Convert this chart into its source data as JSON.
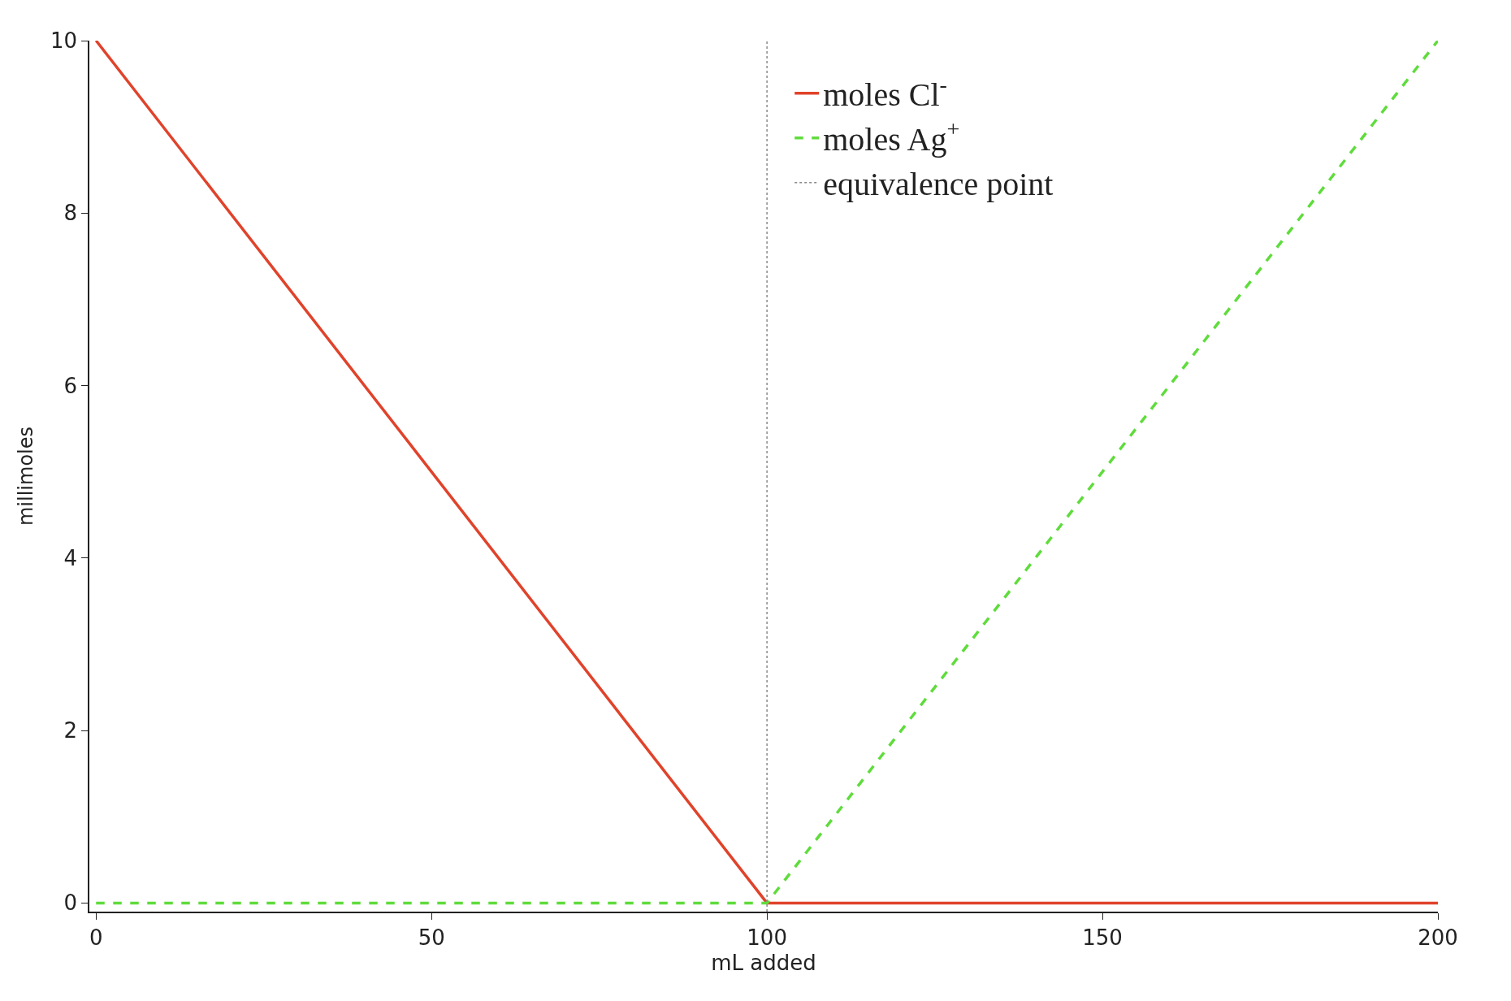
{
  "chart_data": {
    "type": "line",
    "xlabel": "mL added",
    "ylabel": "millimoles",
    "x": [
      0,
      100,
      200
    ],
    "series": [
      {
        "name": "moles Cl$^{-}$",
        "color": "#e0432b",
        "values": [
          10,
          0,
          0
        ],
        "line_style": "solid"
      },
      {
        "name": "moles Ag$^{+}$",
        "color": "#5fdc3c",
        "values": [
          0,
          0,
          10
        ],
        "line_style": "dashed"
      }
    ],
    "ref_lines": [
      {
        "axis": "x",
        "value": 100,
        "label": "equivalence point",
        "color": "#888888",
        "line_style": "dotted"
      }
    ],
    "xlim": [
      -1,
      200
    ],
    "ylim": [
      -0.1,
      10
    ],
    "xticks": [
      0,
      50,
      100,
      150,
      200
    ],
    "yticks": [
      0,
      2,
      4,
      6,
      8,
      10
    ],
    "legend": "top",
    "marker": "none"
  }
}
